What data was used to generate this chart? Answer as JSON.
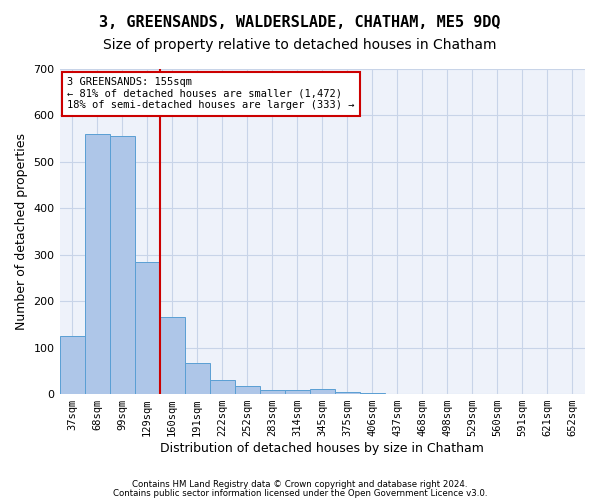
{
  "title": "3, GREENSANDS, WALDERSLADE, CHATHAM, ME5 9DQ",
  "subtitle": "Size of property relative to detached houses in Chatham",
  "xlabel": "Distribution of detached houses by size in Chatham",
  "ylabel": "Number of detached properties",
  "bins": [
    "37sqm",
    "68sqm",
    "99sqm",
    "129sqm",
    "160sqm",
    "191sqm",
    "222sqm",
    "252sqm",
    "283sqm",
    "314sqm",
    "345sqm",
    "375sqm",
    "406sqm",
    "437sqm",
    "468sqm",
    "498sqm",
    "529sqm",
    "560sqm",
    "591sqm",
    "621sqm",
    "652sqm"
  ],
  "values": [
    125,
    560,
    555,
    285,
    165,
    68,
    30,
    18,
    8,
    8,
    10,
    5,
    3,
    0,
    0,
    0,
    0,
    0,
    0,
    0,
    0
  ],
  "bar_color": "#aec6e8",
  "bar_edge_color": "#5a9fd4",
  "red_line_index": 4,
  "red_line_color": "#cc0000",
  "annotation_text": "3 GREENSANDS: 155sqm\n← 81% of detached houses are smaller (1,472)\n18% of semi-detached houses are larger (333) →",
  "annotation_box_color": "#ffffff",
  "annotation_box_edge": "#cc0000",
  "ylim": [
    0,
    700
  ],
  "yticks": [
    0,
    100,
    200,
    300,
    400,
    500,
    600,
    700
  ],
  "grid_color": "#c8d4e8",
  "bg_color": "#eef2fa",
  "footer_line1": "Contains HM Land Registry data © Crown copyright and database right 2024.",
  "footer_line2": "Contains public sector information licensed under the Open Government Licence v3.0.",
  "title_fontsize": 11,
  "subtitle_fontsize": 10,
  "xlabel_fontsize": 9,
  "ylabel_fontsize": 9
}
